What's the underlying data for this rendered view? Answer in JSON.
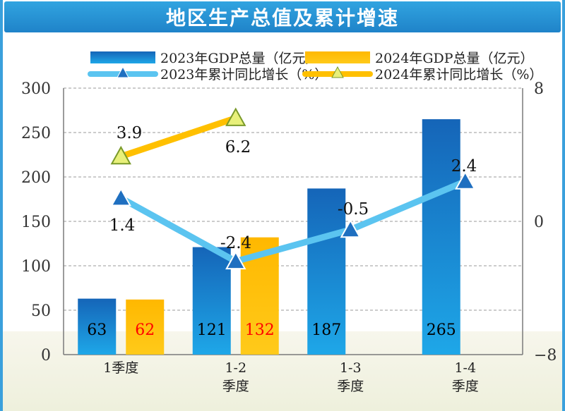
{
  "title": "地区生产总值及累计增速",
  "chart_data": {
    "type": "bar",
    "categories": [
      "1季度",
      "1-2\n季度",
      "1-3\n季度",
      "1-4\n季度"
    ],
    "y_left": {
      "min": 0,
      "max": 300,
      "ticks": [
        0,
        50,
        100,
        150,
        200,
        250,
        300
      ]
    },
    "y_right": {
      "min": -8,
      "max": 8,
      "ticks": [
        -8,
        0,
        8
      ]
    },
    "grid": true,
    "legend_position": "top",
    "series": [
      {
        "name": "2023年GDP总量（亿元）",
        "kind": "bar",
        "axis": "left",
        "color": "#1a7fcc",
        "values": [
          63,
          121,
          187,
          265
        ],
        "label_color": "#000000"
      },
      {
        "name": "2024年GDP总量（亿元）",
        "kind": "bar",
        "axis": "left",
        "color": "#ffc000",
        "values": [
          62,
          132,
          null,
          null
        ],
        "label_color": "#ff0000"
      },
      {
        "name": "2023年累计同比增长（%）",
        "kind": "line",
        "axis": "right",
        "color": "#5bc4f0",
        "marker": "triangle",
        "marker_color": "#1f6fc0",
        "values": [
          1.4,
          -2.4,
          -0.5,
          2.4
        ]
      },
      {
        "name": "2024年累计同比增长（%）",
        "kind": "line",
        "axis": "right",
        "color": "#ffc000",
        "marker": "triangle",
        "marker_color": "#e8f07a",
        "values": [
          3.9,
          6.2,
          null,
          null
        ]
      }
    ],
    "value_labels": {
      "bar_2023": [
        "63",
        "121",
        "187",
        "265"
      ],
      "bar_2024": [
        "62",
        "132",
        "",
        ""
      ],
      "line_2023": [
        "1.4",
        "-2.4",
        "-0.5",
        "2.4"
      ],
      "line_2024": [
        "3.9",
        "6.2",
        "",
        ""
      ]
    }
  }
}
